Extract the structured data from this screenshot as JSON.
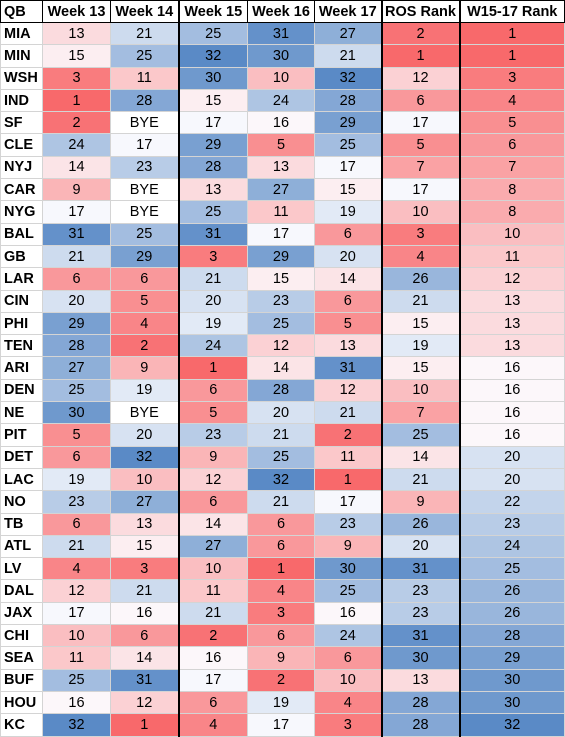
{
  "chart_data": {
    "type": "heatmap",
    "columns": [
      "QB",
      "Week 13",
      "Week 14",
      "Week 15",
      "Week 16",
      "Week 17",
      "ROS Rank",
      "W15-17 Rank"
    ],
    "color_scale": {
      "min_value": 1,
      "max_value": 32,
      "low_color": "#f8696b",
      "mid_color": "#fcfcff",
      "high_color": "#5a8ac6"
    },
    "rows": [
      {
        "team": "MIA",
        "values": [
          "13",
          "21",
          "25",
          "31",
          "27",
          "2",
          "1"
        ]
      },
      {
        "team": "MIN",
        "values": [
          "15",
          "25",
          "32",
          "30",
          "21",
          "1",
          "1"
        ]
      },
      {
        "team": "WSH",
        "values": [
          "3",
          "11",
          "30",
          "10",
          "32",
          "12",
          "3"
        ]
      },
      {
        "team": "IND",
        "values": [
          "1",
          "28",
          "15",
          "24",
          "28",
          "6",
          "4"
        ]
      },
      {
        "team": "SF",
        "values": [
          "2",
          "BYE",
          "17",
          "16",
          "29",
          "17",
          "5"
        ]
      },
      {
        "team": "CLE",
        "values": [
          "24",
          "17",
          "29",
          "5",
          "25",
          "5",
          "6"
        ]
      },
      {
        "team": "NYJ",
        "values": [
          "14",
          "23",
          "28",
          "13",
          "17",
          "7",
          "7"
        ]
      },
      {
        "team": "CAR",
        "values": [
          "9",
          "BYE",
          "13",
          "27",
          "15",
          "17",
          "8"
        ]
      },
      {
        "team": "NYG",
        "values": [
          "17",
          "BYE",
          "25",
          "11",
          "19",
          "10",
          "8"
        ]
      },
      {
        "team": "BAL",
        "values": [
          "31",
          "25",
          "31",
          "17",
          "6",
          "3",
          "10"
        ]
      },
      {
        "team": "GB",
        "values": [
          "21",
          "29",
          "3",
          "29",
          "20",
          "4",
          "11"
        ]
      },
      {
        "team": "LAR",
        "values": [
          "6",
          "6",
          "21",
          "15",
          "14",
          "26",
          "12"
        ]
      },
      {
        "team": "CIN",
        "values": [
          "20",
          "5",
          "20",
          "23",
          "6",
          "21",
          "13"
        ]
      },
      {
        "team": "PHI",
        "values": [
          "29",
          "4",
          "19",
          "25",
          "5",
          "15",
          "13"
        ]
      },
      {
        "team": "TEN",
        "values": [
          "28",
          "2",
          "24",
          "12",
          "13",
          "19",
          "13"
        ]
      },
      {
        "team": "ARI",
        "values": [
          "27",
          "9",
          "1",
          "14",
          "31",
          "15",
          "16"
        ]
      },
      {
        "team": "DEN",
        "values": [
          "25",
          "19",
          "6",
          "28",
          "12",
          "10",
          "16"
        ]
      },
      {
        "team": "NE",
        "values": [
          "30",
          "BYE",
          "5",
          "20",
          "21",
          "7",
          "16"
        ]
      },
      {
        "team": "PIT",
        "values": [
          "5",
          "20",
          "23",
          "21",
          "2",
          "25",
          "16"
        ]
      },
      {
        "team": "DET",
        "values": [
          "6",
          "32",
          "9",
          "25",
          "11",
          "14",
          "20"
        ]
      },
      {
        "team": "LAC",
        "values": [
          "19",
          "10",
          "12",
          "32",
          "1",
          "21",
          "20"
        ]
      },
      {
        "team": "NO",
        "values": [
          "23",
          "27",
          "6",
          "21",
          "17",
          "9",
          "22"
        ]
      },
      {
        "team": "TB",
        "values": [
          "6",
          "13",
          "14",
          "6",
          "23",
          "26",
          "23"
        ]
      },
      {
        "team": "ATL",
        "values": [
          "21",
          "15",
          "27",
          "6",
          "9",
          "20",
          "24"
        ]
      },
      {
        "team": "LV",
        "values": [
          "4",
          "3",
          "10",
          "1",
          "30",
          "31",
          "25"
        ]
      },
      {
        "team": "DAL",
        "values": [
          "12",
          "21",
          "11",
          "4",
          "25",
          "23",
          "26"
        ]
      },
      {
        "team": "JAX",
        "values": [
          "17",
          "16",
          "21",
          "3",
          "16",
          "23",
          "26"
        ]
      },
      {
        "team": "CHI",
        "values": [
          "10",
          "6",
          "2",
          "6",
          "24",
          "31",
          "28"
        ]
      },
      {
        "team": "SEA",
        "values": [
          "11",
          "14",
          "16",
          "9",
          "6",
          "30",
          "29"
        ]
      },
      {
        "team": "BUF",
        "values": [
          "25",
          "31",
          "17",
          "2",
          "10",
          "13",
          "30"
        ]
      },
      {
        "team": "HOU",
        "values": [
          "16",
          "12",
          "6",
          "19",
          "4",
          "28",
          "30"
        ]
      },
      {
        "team": "KC",
        "values": [
          "32",
          "1",
          "4",
          "17",
          "3",
          "28",
          "32"
        ]
      }
    ]
  }
}
